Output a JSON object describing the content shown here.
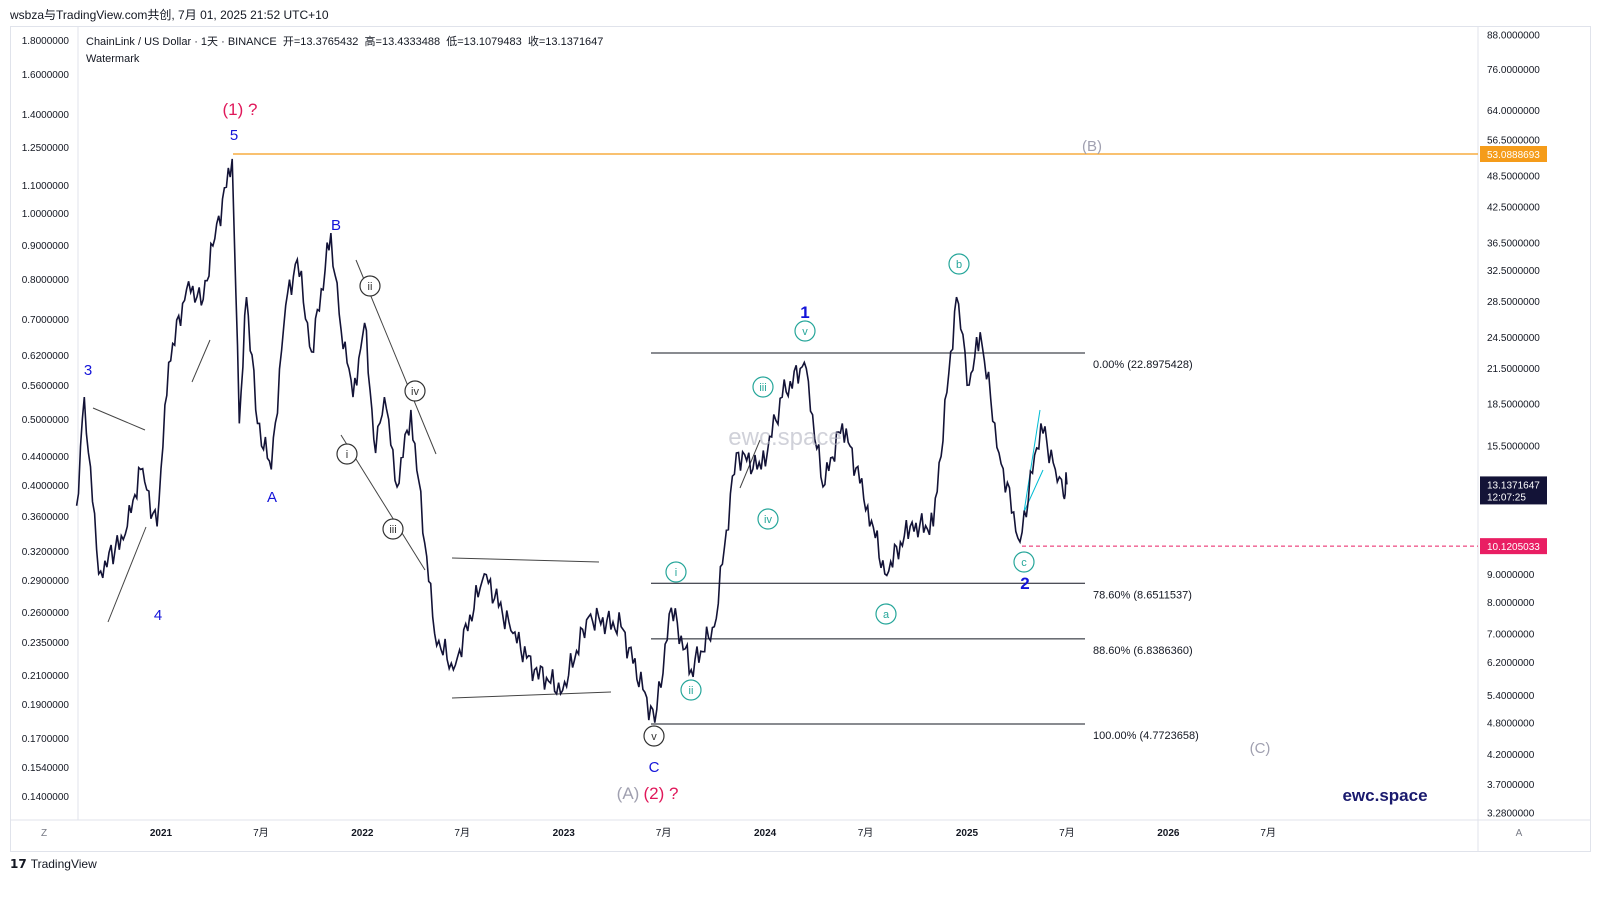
{
  "header": {
    "watermark_line": "wsbza与TradingView.com共创, 7月 01, 2025 21:52 UTC+10"
  },
  "legend": {
    "symbol": "ChainLink / US Dollar · 1天 · BINANCE",
    "open_label": "开=13.3765432",
    "high_label": "高=13.4333488",
    "low_label": "低=13.1079483",
    "close_label": "收=13.1371647",
    "watermark": "Watermark"
  },
  "footer": {
    "brand": "TradingView",
    "logo": "𝟭𝟳"
  },
  "brand_mark": "ewc.space",
  "axis_corner_left": "Z",
  "axis_corner_right": "A",
  "colors": {
    "candle": "#131337",
    "accent_orange": "#f59c1a",
    "accent_red": "#e91e63",
    "wave_blue": "#1414d9",
    "wave_magenta": "#e0185a",
    "wave_gray": "#a0a0b0",
    "wave_teal": "#26a69a",
    "fib_line": "#131722"
  },
  "chart_data": {
    "type": "line",
    "title": "ChainLink / US Dollar · 1天 · BINANCE",
    "left_axis_ticks": [
      "1.8000000",
      "1.6000000",
      "1.4000000",
      "1.2500000",
      "1.1000000",
      "1.0000000",
      "0.9000000",
      "0.8000000",
      "0.7000000",
      "0.6200000",
      "0.5600000",
      "0.5000000",
      "0.4400000",
      "0.4000000",
      "0.3600000",
      "0.3200000",
      "0.2900000",
      "0.2600000",
      "0.2350000",
      "0.2100000",
      "0.1900000",
      "0.1700000",
      "0.1540000",
      "0.1400000"
    ],
    "right_axis_ticks": [
      "88.0000000",
      "76.0000000",
      "64.0000000",
      "56.5000000",
      "48.5000000",
      "42.5000000",
      "36.5000000",
      "32.5000000",
      "28.5000000",
      "24.5000000",
      "21.5000000",
      "18.5000000",
      "15.5000000",
      "9.0000000",
      "8.0000000",
      "7.0000000",
      "6.2000000",
      "5.4000000",
      "4.8000000",
      "4.2000000",
      "3.7000000",
      "3.2800000"
    ],
    "x_ticks": [
      "2021",
      "7月",
      "2022",
      "7月",
      "2023",
      "7月",
      "2024",
      "7月",
      "2025",
      "7月",
      "2026",
      "7月"
    ],
    "price_labels": {
      "orange_level": "53.0888693",
      "current_price": "13.1371647",
      "countdown": "12:07:25",
      "red_level": "10.1205033"
    },
    "fib_levels": [
      {
        "label": "0.00% (22.8975428)",
        "value": 22.8975428
      },
      {
        "label": "78.60% (8.6511537)",
        "value": 8.6511537
      },
      {
        "label": "88.60% (6.8386360)",
        "value": 6.838636
      },
      {
        "label": "100.00% (4.7723658)",
        "value": 4.7723658
      }
    ],
    "wave_labels": {
      "w1q": "(1) ?",
      "w5": "5",
      "w3": "3",
      "w4": "4",
      "wA": "A",
      "wB": "B",
      "wC": "C",
      "wAA": "(A)",
      "w2q": "(2) ?",
      "wB2": "(B)",
      "wC2": "(C)",
      "one": "1",
      "two": "2",
      "i": "i",
      "ii": "ii",
      "iii": "iii",
      "iv": "iv",
      "v": "v",
      "a": "a",
      "b": "b",
      "c": "c"
    },
    "price_series": [
      [
        "2020-08-01",
        12
      ],
      [
        "2020-08-15",
        19
      ],
      [
        "2020-09-10",
        9
      ],
      [
        "2020-10-10",
        10
      ],
      [
        "2020-11-01",
        11
      ],
      [
        "2020-11-25",
        14
      ],
      [
        "2020-12-25",
        11
      ],
      [
        "2021-01-15",
        22
      ],
      [
        "2021-02-20",
        31
      ],
      [
        "2021-03-15",
        28
      ],
      [
        "2021-04-05",
        36
      ],
      [
        "2021-05-10",
        52
      ],
      [
        "2021-05-23",
        17
      ],
      [
        "2021-06-05",
        29
      ],
      [
        "2021-06-25",
        17
      ],
      [
        "2021-07-20",
        14
      ],
      [
        "2021-08-15",
        28
      ],
      [
        "2021-09-05",
        34
      ],
      [
        "2021-10-01",
        23
      ],
      [
        "2021-11-05",
        38
      ],
      [
        "2021-11-20",
        27
      ],
      [
        "2021-12-15",
        19
      ],
      [
        "2022-01-05",
        26
      ],
      [
        "2022-01-25",
        15
      ],
      [
        "2022-02-10",
        19
      ],
      [
        "2022-03-05",
        13
      ],
      [
        "2022-03-30",
        18
      ],
      [
        "2022-05-12",
        7
      ],
      [
        "2022-06-15",
        6
      ],
      [
        "2022-08-10",
        9
      ],
      [
        "2022-10-01",
        7
      ],
      [
        "2022-11-09",
        6
      ],
      [
        "2022-12-30",
        5.5
      ],
      [
        "2023-02-15",
        7.5
      ],
      [
        "2023-04-15",
        7.2
      ],
      [
        "2023-06-15",
        4.8
      ],
      [
        "2023-07-15",
        7.8
      ],
      [
        "2023-08-20",
        6
      ],
      [
        "2023-10-01",
        7.2
      ],
      [
        "2023-11-10",
        15
      ],
      [
        "2023-12-25",
        14
      ],
      [
        "2024-02-01",
        19
      ],
      [
        "2024-03-12",
        22
      ],
      [
        "2024-04-15",
        13
      ],
      [
        "2024-05-20",
        17
      ],
      [
        "2024-07-05",
        12
      ],
      [
        "2024-08-05",
        9
      ],
      [
        "2024-09-20",
        11
      ],
      [
        "2024-11-01",
        11
      ],
      [
        "2024-12-13",
        29
      ],
      [
        "2025-01-05",
        20
      ],
      [
        "2025-01-25",
        25
      ],
      [
        "2025-02-28",
        15
      ],
      [
        "2025-04-07",
        10.3
      ],
      [
        "2025-05-15",
        17
      ],
      [
        "2025-06-10",
        14
      ],
      [
        "2025-06-25",
        12.5
      ],
      [
        "2025-07-01",
        13.14
      ]
    ]
  }
}
